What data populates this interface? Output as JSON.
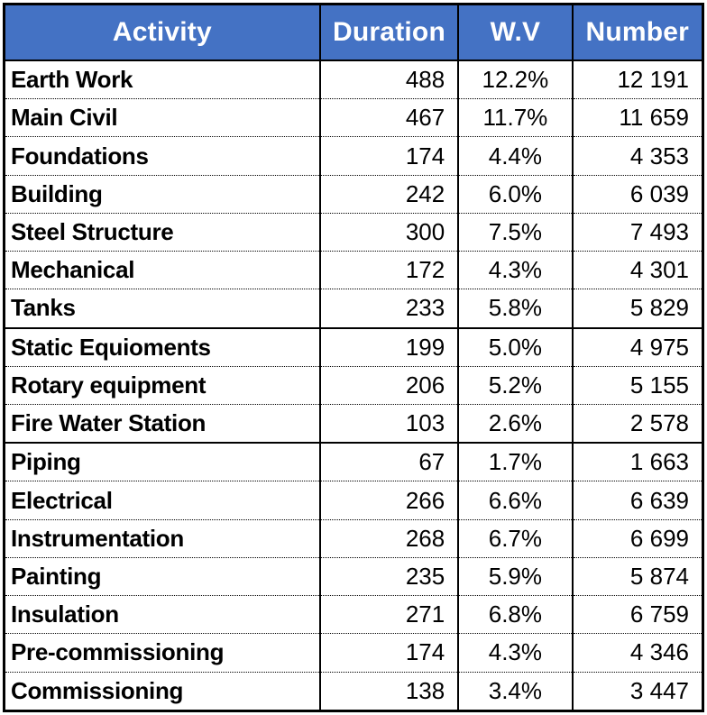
{
  "colors": {
    "header_bg": "#4472C4",
    "header_text": "#FFFFFF",
    "body_text": "#000000",
    "border": "#000000"
  },
  "table": {
    "columns": [
      "Activity",
      "Duration",
      "W.V",
      "Number"
    ],
    "group_start_row_indexes": [
      7,
      10
    ],
    "rows": [
      {
        "activity": "Earth Work",
        "duration": "488",
        "wv": "12.2%",
        "number": "12 191"
      },
      {
        "activity": "Main Civil",
        "duration": "467",
        "wv": "11.7%",
        "number": "11 659"
      },
      {
        "activity": "Foundations",
        "duration": "174",
        "wv": "4.4%",
        "number": "4 353"
      },
      {
        "activity": "Building",
        "duration": "242",
        "wv": "6.0%",
        "number": "6 039"
      },
      {
        "activity": "Steel Structure",
        "duration": "300",
        "wv": "7.5%",
        "number": "7 493"
      },
      {
        "activity": "Mechanical",
        "duration": "172",
        "wv": "4.3%",
        "number": "4 301"
      },
      {
        "activity": "Tanks",
        "duration": "233",
        "wv": "5.8%",
        "number": "5 829"
      },
      {
        "activity": "Static Equioments",
        "duration": "199",
        "wv": "5.0%",
        "number": "4 975"
      },
      {
        "activity": "Rotary equipment",
        "duration": "206",
        "wv": "5.2%",
        "number": "5 155"
      },
      {
        "activity": "Fire Water Station",
        "duration": "103",
        "wv": "2.6%",
        "number": "2 578"
      },
      {
        "activity": "Piping",
        "duration": "67",
        "wv": "1.7%",
        "number": "1 663"
      },
      {
        "activity": "Electrical",
        "duration": "266",
        "wv": "6.6%",
        "number": "6 639"
      },
      {
        "activity": "Instrumentation",
        "duration": "268",
        "wv": "6.7%",
        "number": "6 699"
      },
      {
        "activity": "Painting",
        "duration": "235",
        "wv": "5.9%",
        "number": "5 874"
      },
      {
        "activity": "Insulation",
        "duration": "271",
        "wv": "6.8%",
        "number": "6 759"
      },
      {
        "activity": "Pre-commissioning",
        "duration": "174",
        "wv": "4.3%",
        "number": "4 346"
      },
      {
        "activity": "Commissioning",
        "duration": "138",
        "wv": "3.4%",
        "number": "3 447"
      }
    ]
  },
  "chart_data": {
    "type": "table",
    "title": "",
    "columns": [
      "Activity",
      "Duration",
      "W.V",
      "Number"
    ],
    "categories": [
      "Earth Work",
      "Main Civil",
      "Foundations",
      "Building",
      "Steel Structure",
      "Mechanical",
      "Tanks",
      "Static Equioments",
      "Rotary equipment",
      "Fire Water Station",
      "Piping",
      "Electrical",
      "Instrumentation",
      "Painting",
      "Insulation",
      "Pre-commissioning",
      "Commissioning"
    ],
    "series": [
      {
        "name": "Duration",
        "values": [
          488,
          467,
          174,
          242,
          300,
          172,
          233,
          199,
          206,
          103,
          67,
          266,
          268,
          235,
          271,
          174,
          138
        ]
      },
      {
        "name": "W.V (%)",
        "values": [
          12.2,
          11.7,
          4.4,
          6.0,
          7.5,
          4.3,
          5.8,
          5.0,
          5.2,
          2.6,
          1.7,
          6.6,
          6.7,
          5.9,
          6.8,
          4.3,
          3.4
        ]
      },
      {
        "name": "Number",
        "values": [
          12191,
          11659,
          4353,
          6039,
          7493,
          4301,
          5829,
          4975,
          5155,
          2578,
          1663,
          6639,
          6699,
          5874,
          6759,
          4346,
          3447
        ]
      }
    ]
  }
}
